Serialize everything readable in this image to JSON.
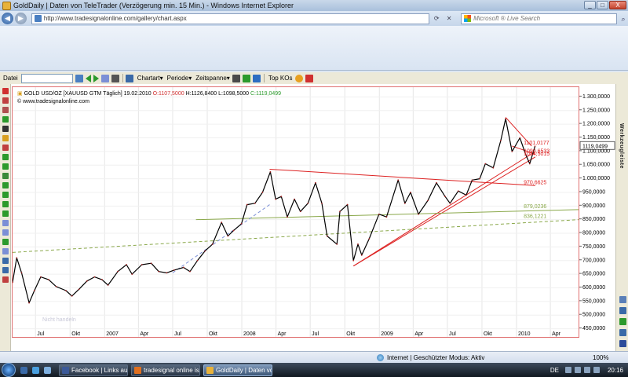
{
  "window": {
    "title": "GoldDaily | Daten von TeleTrader (Verzögerung min. 15 Min.) - Windows Internet Explorer",
    "buttons": {
      "minimize": "_",
      "maximize": "□",
      "close": "X"
    }
  },
  "browser": {
    "url": "http://www.tradesignalonline.com/gallery/chart.aspx",
    "search_placeholder": "Microsoft ® Live Search"
  },
  "toolbar": {
    "data_label": "Datei",
    "search_value": "",
    "menus": {
      "chartart": "Chartart",
      "periode": "Periode",
      "zeitspanne": "Zeitspanne",
      "topkos": "Top KOs"
    }
  },
  "chart_header": {
    "instrument": "GOLD USD/OZ [XAUUSD GTM  Täglich]",
    "date": "19.02.2010",
    "open": "O:1107,5000",
    "high": "H:1126,8400",
    "low": "L:1098,5000",
    "close": "C:1119,0499",
    "site": "www.tradesignalonline.com",
    "watermark": "Nicht handeln"
  },
  "chart_data": {
    "type": "line",
    "title": "GOLD USD/OZ [XAUUSD GTM  Täglich]",
    "x_ticks": [
      "Jul",
      "Okt",
      "2007",
      "Apr",
      "Jul",
      "Okt",
      "2008",
      "Apr",
      "Jul",
      "Okt",
      "2009",
      "Apr",
      "Jul",
      "Okt",
      "2010",
      "Apr"
    ],
    "y_ticks": [
      "1.300,0000",
      "1.250,0000",
      "1.200,0000",
      "1.150,0000",
      "1.100,0000",
      "1.050,0000",
      "1.000,0000",
      "950,0000",
      "900,0000",
      "850,0000",
      "800,0000",
      "750,0000",
      "700,0000",
      "650,0000",
      "600,0000",
      "550,0000",
      "500,0000",
      "450,0000"
    ],
    "ylim": [
      420,
      1330
    ],
    "x_range": [
      "2006-05-01",
      "2010-06-15"
    ],
    "series": [
      {
        "values": [
          [
            "2006-05-01",
            620
          ],
          [
            "2006-05-12",
            710
          ],
          [
            "2006-05-25",
            655
          ],
          [
            "2006-06-14",
            545
          ],
          [
            "2006-06-28",
            590
          ],
          [
            "2006-07-15",
            640
          ],
          [
            "2006-08-05",
            630
          ],
          [
            "2006-08-25",
            605
          ],
          [
            "2006-09-20",
            590
          ],
          [
            "2006-10-06",
            570
          ],
          [
            "2006-10-25",
            595
          ],
          [
            "2006-11-15",
            625
          ],
          [
            "2006-12-05",
            640
          ],
          [
            "2006-12-25",
            630
          ],
          [
            "2007-01-10",
            610
          ],
          [
            "2007-02-05",
            660
          ],
          [
            "2007-02-28",
            685
          ],
          [
            "2007-03-15",
            650
          ],
          [
            "2007-04-10",
            685
          ],
          [
            "2007-05-05",
            690
          ],
          [
            "2007-05-25",
            660
          ],
          [
            "2007-06-15",
            655
          ],
          [
            "2007-07-05",
            665
          ],
          [
            "2007-07-30",
            675
          ],
          [
            "2007-08-16",
            660
          ],
          [
            "2007-09-05",
            700
          ],
          [
            "2007-09-25",
            735
          ],
          [
            "2007-10-15",
            760
          ],
          [
            "2007-11-08",
            840
          ],
          [
            "2007-11-25",
            790
          ],
          [
            "2007-12-10",
            810
          ],
          [
            "2007-12-31",
            835
          ],
          [
            "2008-01-15",
            905
          ],
          [
            "2008-02-05",
            910
          ],
          [
            "2008-02-25",
            950
          ],
          [
            "2008-03-17",
            1025
          ],
          [
            "2008-03-31",
            925
          ],
          [
            "2008-04-15",
            935
          ],
          [
            "2008-05-01",
            860
          ],
          [
            "2008-05-20",
            925
          ],
          [
            "2008-06-05",
            880
          ],
          [
            "2008-06-25",
            910
          ],
          [
            "2008-07-15",
            985
          ],
          [
            "2008-08-01",
            910
          ],
          [
            "2008-08-15",
            790
          ],
          [
            "2008-09-10",
            760
          ],
          [
            "2008-09-18",
            880
          ],
          [
            "2008-10-08",
            905
          ],
          [
            "2008-10-24",
            700
          ],
          [
            "2008-11-05",
            760
          ],
          [
            "2008-11-15",
            720
          ],
          [
            "2008-12-05",
            780
          ],
          [
            "2008-12-31",
            870
          ],
          [
            "2009-01-20",
            860
          ],
          [
            "2009-02-20",
            995
          ],
          [
            "2009-03-10",
            910
          ],
          [
            "2009-03-25",
            950
          ],
          [
            "2009-04-15",
            870
          ],
          [
            "2009-05-10",
            920
          ],
          [
            "2009-06-02",
            985
          ],
          [
            "2009-06-25",
            935
          ],
          [
            "2009-07-08",
            910
          ],
          [
            "2009-07-30",
            955
          ],
          [
            "2009-08-20",
            940
          ],
          [
            "2009-09-05",
            995
          ],
          [
            "2009-09-25",
            1000
          ],
          [
            "2009-10-10",
            1055
          ],
          [
            "2009-10-31",
            1040
          ],
          [
            "2009-11-20",
            1140
          ],
          [
            "2009-12-03",
            1220
          ],
          [
            "2009-12-20",
            1100
          ],
          [
            "2010-01-10",
            1150
          ],
          [
            "2010-01-25",
            1090
          ],
          [
            "2010-02-05",
            1055
          ],
          [
            "2010-02-19",
            1119
          ]
        ]
      }
    ],
    "overlays": [
      {
        "kind": "line",
        "from": [
          "2008-03-15",
          1035
        ],
        "to": [
          "2010-02-20",
          975
        ],
        "label": "970,6625",
        "color": "#dd2222"
      },
      {
        "kind": "line",
        "from": [
          "2008-10-24",
          680
        ],
        "to": [
          "2010-02-20",
          1080
        ],
        "label": "1054,5015",
        "color": "#dd2222"
      },
      {
        "kind": "line",
        "from": [
          "2008-10-24",
          680
        ],
        "to": [
          "2010-02-20",
          1100
        ],
        "label": "",
        "color": "#dd2222"
      },
      {
        "kind": "line",
        "from": [
          "2009-12-03",
          1225
        ],
        "to": [
          "2010-02-10",
          1120
        ],
        "label": "1101,0177",
        "color": "#dd2222"
      },
      {
        "kind": "line",
        "from": [
          "2009-12-20",
          1120
        ],
        "to": [
          "2010-02-20",
          1090
        ],
        "label": "1090,6533",
        "color": "#dd2222"
      },
      {
        "kind": "line",
        "from": [
          "2007-09-01",
          850
        ],
        "to": [
          "2010-06-15",
          887
        ],
        "label": "879,0236",
        "color": "#8aa84a"
      },
      {
        "kind": "dashed",
        "from": [
          "2006-05-01",
          730
        ],
        "to": [
          "2010-06-15",
          850
        ],
        "label": "836,1221",
        "color": "#8aa84a"
      },
      {
        "kind": "dashed",
        "from": [
          "2007-07-01",
          655
        ],
        "to": [
          "2008-03-15",
          905
        ],
        "label": "",
        "color": "#7b8fd6"
      }
    ],
    "last_price": "1119,0499",
    "grid": true
  },
  "status": {
    "zone": "Internet | Geschützter Modus: Aktiv",
    "zoom": "100%"
  },
  "taskbar": {
    "tasks": [
      {
        "label": "Facebook | Links auf...",
        "active": false,
        "color": "#3b5998"
      },
      {
        "label": "tradesignal online is...",
        "active": false,
        "color": "#e07020"
      },
      {
        "label": "GoldDaily | Daten vo...",
        "active": true,
        "color": "#e8b23a"
      }
    ],
    "lang": "DE",
    "clock": "20:16"
  },
  "sidebar": {
    "title": "Werkzeugleiste"
  },
  "colors": {
    "frame": "#e07070",
    "price": "#000000",
    "trend": "#dd2222",
    "support": "#8aa84a"
  }
}
